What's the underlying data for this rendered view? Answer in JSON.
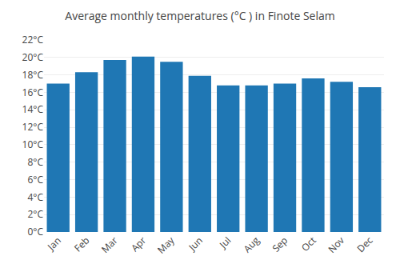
{
  "chart_data": {
    "type": "bar",
    "title": "Average monthly temperatures (°C ) in Finote Selam",
    "categories": [
      "Jan",
      "Feb",
      "Mar",
      "Apr",
      "May",
      "Jun",
      "Jul",
      "Aug",
      "Sep",
      "Oct",
      "Nov",
      "Dec"
    ],
    "values": [
      17.0,
      18.3,
      19.7,
      20.1,
      19.5,
      17.9,
      16.8,
      16.8,
      17.0,
      17.6,
      17.2,
      16.6
    ],
    "ylim": [
      0,
      22
    ],
    "yticks": [
      {
        "value": 0,
        "label": "0°C"
      },
      {
        "value": 2,
        "label": "2°C"
      },
      {
        "value": 4,
        "label": "4°C"
      },
      {
        "value": 6,
        "label": "6°C"
      },
      {
        "value": 8,
        "label": "8°C"
      },
      {
        "value": 10,
        "label": "10°C"
      },
      {
        "value": 12,
        "label": "12°C"
      },
      {
        "value": 14,
        "label": "14°C"
      },
      {
        "value": 16,
        "label": "16°C"
      },
      {
        "value": 18,
        "label": "18°C"
      },
      {
        "value": 20,
        "label": "20°C"
      },
      {
        "value": 22,
        "label": "22°C"
      }
    ],
    "grid": true
  }
}
